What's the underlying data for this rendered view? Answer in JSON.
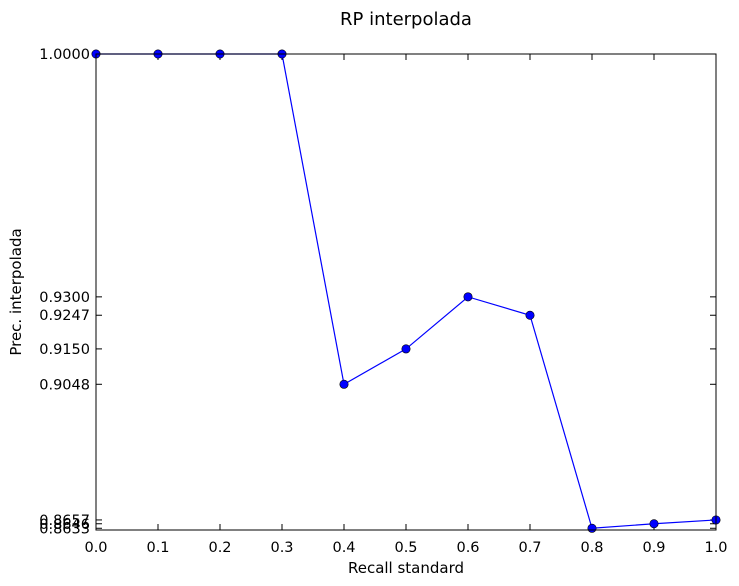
{
  "chart_data": {
    "type": "line",
    "title": "RP interpolada",
    "xlabel": "Recall standard",
    "ylabel": "Prec. interpolada",
    "x": [
      0.0,
      0.1,
      0.2,
      0.3,
      0.4,
      0.5,
      0.6,
      0.7,
      0.8,
      0.9,
      1.0
    ],
    "series": [
      {
        "values": [
          1.0,
          1.0,
          1.0,
          1.0,
          0.9048,
          0.915,
          0.93,
          0.9247,
          0.8633,
          0.8646,
          0.8657
        ],
        "color": "#0000ff",
        "marker": "circle"
      }
    ],
    "xlim": [
      0.0,
      1.0
    ],
    "ylim": [
      0.8628,
      1.0
    ],
    "xticks": [
      "0.0",
      "0.1",
      "0.2",
      "0.3",
      "0.4",
      "0.5",
      "0.6",
      "0.7",
      "0.8",
      "0.9",
      "1.0"
    ],
    "yticks": [
      "0.8633",
      "0.8646",
      "0.8657",
      "0.9048",
      "0.9150",
      "0.9247",
      "0.9300",
      "1.0000"
    ],
    "grid": false,
    "legend": false
  }
}
